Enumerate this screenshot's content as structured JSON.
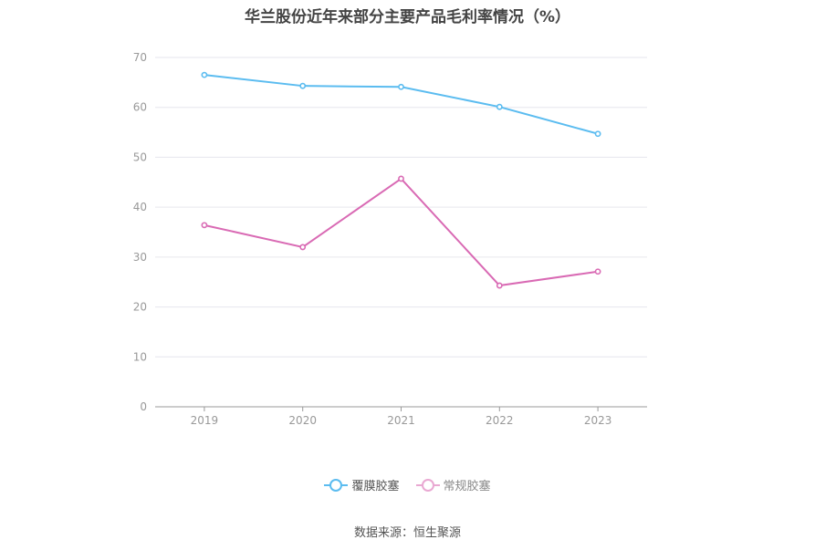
{
  "chart_data": {
    "type": "line",
    "title": "华兰股份近年来部分主要产品毛利率情况（%）",
    "categories": [
      "2019",
      "2020",
      "2021",
      "2022",
      "2023"
    ],
    "series": [
      {
        "name": "覆膜胶塞",
        "color": "#5bbcf0",
        "values": [
          66.5,
          64.3,
          64.1,
          60.1,
          54.7
        ]
      },
      {
        "name": "常规胶塞",
        "color": "#d96ab4",
        "values": [
          36.4,
          32.0,
          45.7,
          24.3,
          27.1
        ]
      }
    ],
    "yticks": [
      0,
      10,
      20,
      30,
      40,
      50,
      60,
      70
    ],
    "ylim": [
      0,
      70
    ],
    "grid": true,
    "legend_position": "bottom-center"
  },
  "source": "数据来源：恒生聚源"
}
